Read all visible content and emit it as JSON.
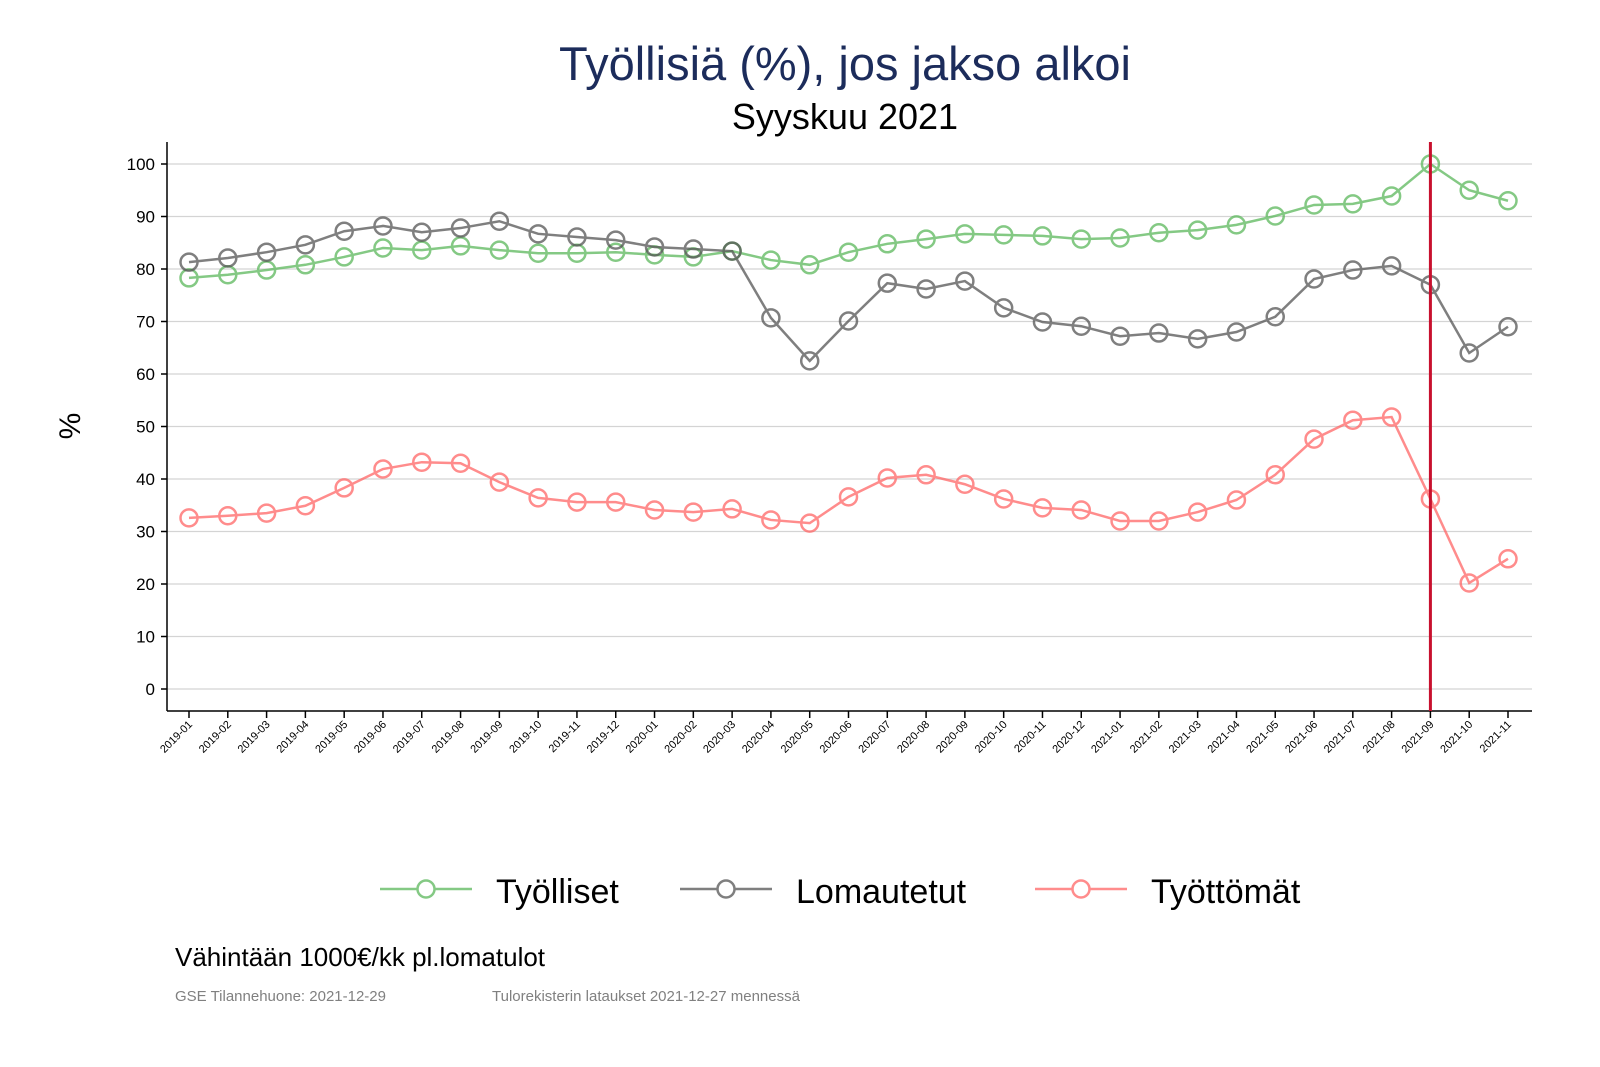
{
  "chart_data": {
    "type": "line",
    "title": "Työllisiä (%), jos jakso alkoi",
    "subtitle": "Syyskuu 2021",
    "xlabel": "",
    "ylabel": "%",
    "ylim": [
      -4,
      104
    ],
    "yticks": [
      0,
      10,
      20,
      30,
      40,
      50,
      60,
      70,
      80,
      90,
      100
    ],
    "grid": true,
    "legend_position": "bottom",
    "marker_line": {
      "x": "2021-09",
      "color": "#c8102e"
    },
    "x": [
      "2019-01",
      "2019-02",
      "2019-03",
      "2019-04",
      "2019-05",
      "2019-06",
      "2019-07",
      "2019-08",
      "2019-09",
      "2019-10",
      "2019-11",
      "2019-12",
      "2020-01",
      "2020-02",
      "2020-03",
      "2020-04",
      "2020-05",
      "2020-06",
      "2020-07",
      "2020-08",
      "2020-09",
      "2020-10",
      "2020-11",
      "2020-12",
      "2021-01",
      "2021-02",
      "2021-03",
      "2021-04",
      "2021-05",
      "2021-06",
      "2021-07",
      "2021-08",
      "2021-09",
      "2021-10",
      "2021-11"
    ],
    "series": [
      {
        "name": "Työlliset",
        "color": "#5cb85c",
        "values": [
          78.3,
          78.9,
          79.8,
          80.8,
          82.3,
          84.0,
          83.6,
          84.4,
          83.6,
          83.0,
          83.0,
          83.2,
          82.7,
          82.3,
          83.4,
          81.7,
          80.8,
          83.2,
          84.8,
          85.7,
          86.7,
          86.5,
          86.3,
          85.7,
          85.9,
          86.9,
          87.4,
          88.4,
          90.1,
          92.2,
          92.4,
          93.9,
          100.0,
          95.0,
          93.0
        ]
      },
      {
        "name": "Lomautetut",
        "color": "#555555",
        "values": [
          81.3,
          82.1,
          83.2,
          84.6,
          87.2,
          88.2,
          87.0,
          87.8,
          89.1,
          86.7,
          86.1,
          85.5,
          84.2,
          83.8,
          83.4,
          70.7,
          62.5,
          70.1,
          77.3,
          76.2,
          77.7,
          72.6,
          69.9,
          69.1,
          67.2,
          67.8,
          66.7,
          68.0,
          70.9,
          78.1,
          79.8,
          80.6,
          77.0,
          64.0,
          69.0
        ]
      },
      {
        "name": "Työttömät",
        "color": "#ff6666",
        "values": [
          32.6,
          33.0,
          33.5,
          34.9,
          38.3,
          41.9,
          43.2,
          43.0,
          39.4,
          36.4,
          35.6,
          35.6,
          34.1,
          33.7,
          34.3,
          32.2,
          31.6,
          36.6,
          40.2,
          40.8,
          39.0,
          36.2,
          34.5,
          34.1,
          32.0,
          32.0,
          33.7,
          36.0,
          40.8,
          47.6,
          51.2,
          51.8,
          36.2,
          20.2,
          24.8
        ]
      }
    ]
  },
  "note": "Vähintään 1000€/kk pl.lomatulot",
  "source_left": "GSE Tilannehuone: 2021-12-29",
  "source_right": "Tulorekisterin lataukset 2021-12-27 mennessä"
}
